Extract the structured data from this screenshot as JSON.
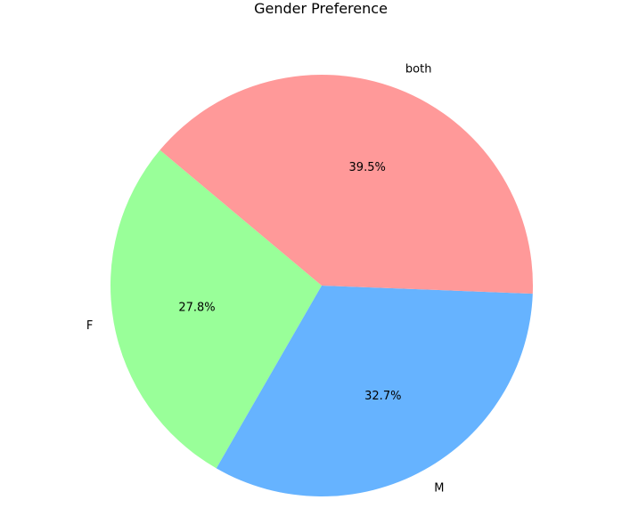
{
  "chart_data": {
    "type": "pie",
    "title": "Gender Preference",
    "categories": [
      "F",
      "M",
      "both"
    ],
    "values": [
      27.8,
      32.7,
      39.5
    ],
    "value_labels": [
      "27.8%",
      "32.7%",
      "39.5%"
    ],
    "colors": [
      "#99ff99",
      "#66b3ff",
      "#ff9999"
    ],
    "start_angle_deg": 140,
    "direction": "counterclockwise",
    "legend": "none"
  }
}
